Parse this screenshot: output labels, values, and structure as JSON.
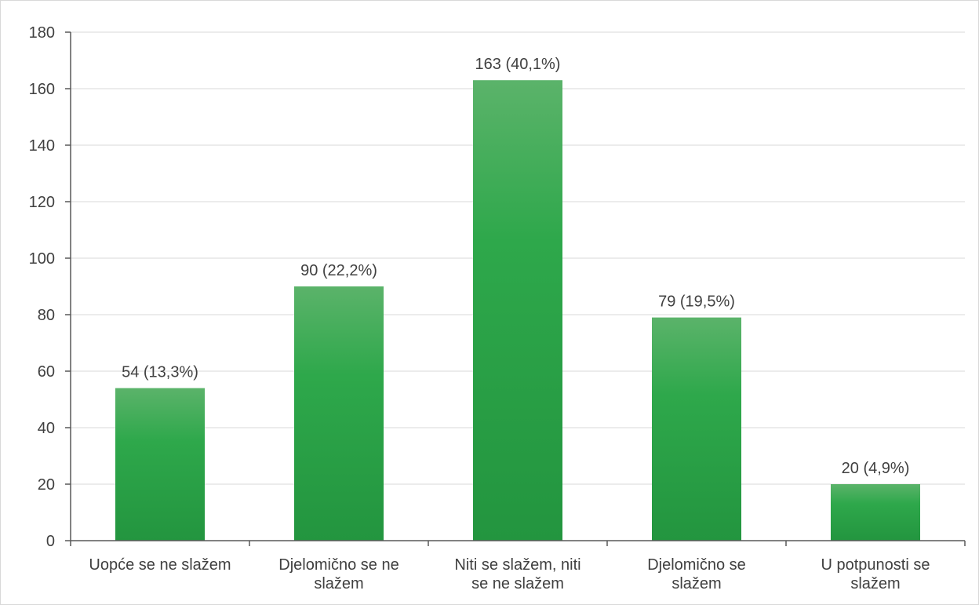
{
  "chart_data": {
    "type": "bar",
    "title": "",
    "xlabel": "",
    "ylabel": "",
    "categories": [
      [
        "Uopće se ne slažem"
      ],
      [
        "Djelomično se ne",
        "slažem"
      ],
      [
        "Niti se slažem, niti",
        "se ne slažem"
      ],
      [
        "Djelomično se",
        "slažem"
      ],
      [
        "U potpunosti se",
        "slažem"
      ]
    ],
    "values": [
      54,
      90,
      163,
      79,
      20
    ],
    "data_labels": [
      "54 (13,3%)",
      "90 (22,2%)",
      "163 (40,1%)",
      "79 (19,5%)",
      "20 (4,9%)"
    ],
    "ylim": [
      0,
      180
    ],
    "yticks": [
      0,
      20,
      40,
      60,
      80,
      100,
      120,
      140,
      160,
      180
    ],
    "grid": true,
    "legend": "none",
    "colors": {
      "bar_top": "#5bb36a",
      "bar_mid": "#2ea84b",
      "bar_bottom": "#23953f"
    }
  }
}
